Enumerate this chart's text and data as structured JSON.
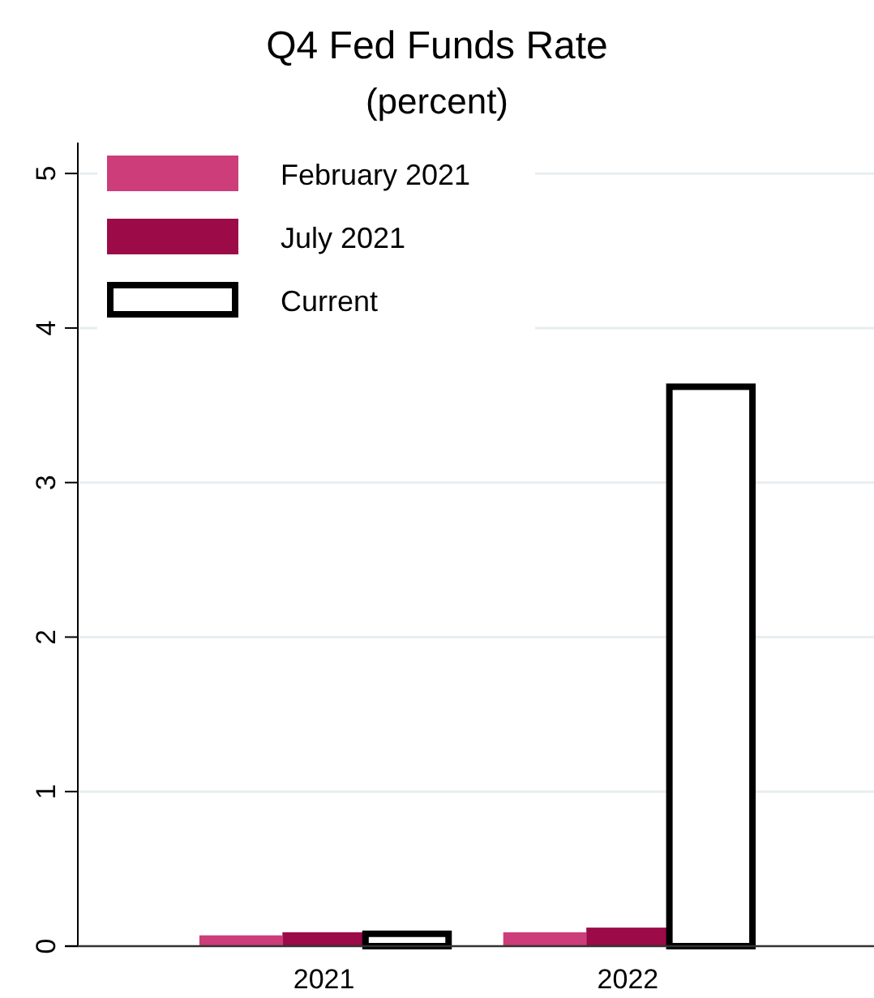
{
  "chart_data": {
    "type": "bar",
    "title": "Q4 Fed Funds Rate",
    "subtitle": "(percent)",
    "categories": [
      "2021",
      "2022"
    ],
    "series": [
      {
        "name": "February 2021",
        "color": "#cc3d7a",
        "values": [
          0.07,
          0.09
        ]
      },
      {
        "name": "July 2021",
        "color": "#9c0a48",
        "values": [
          0.09,
          0.12
        ]
      },
      {
        "name": "Current",
        "color": "#ffffff",
        "values": [
          0.08,
          3.62
        ]
      }
    ],
    "ylim": [
      0,
      5.2
    ],
    "yticks": [
      0,
      1,
      2,
      3,
      4,
      5
    ],
    "grid": "y",
    "legend": "top left"
  }
}
